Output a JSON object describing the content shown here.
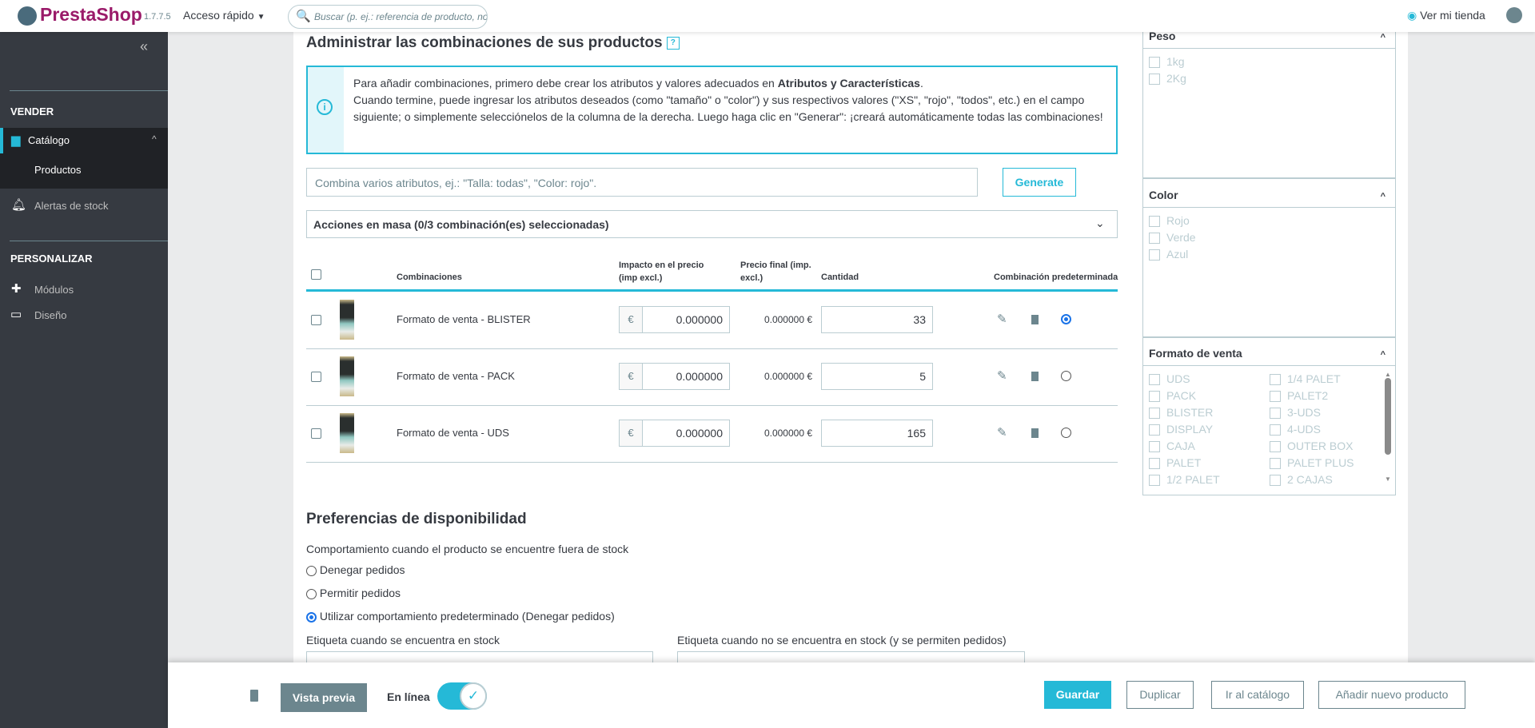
{
  "header": {
    "logo_text": "PrestaShop",
    "version": "1.7.7.5",
    "quick_access": "Acceso rápido",
    "search_placeholder": "Buscar (p. ej.: referencia de producto, no",
    "view_store": "Ver mi tienda"
  },
  "sidebar": {
    "sections": [
      {
        "title": "VENDER"
      },
      {
        "title": "PERSONALIZAR"
      }
    ],
    "items": [
      {
        "label": "Catálogo",
        "icon": "store-icon"
      },
      {
        "label": "Productos"
      },
      {
        "label": "Alertas de stock",
        "icon": "bell-icon"
      },
      {
        "label": "Módulos",
        "icon": "puzzle-icon"
      },
      {
        "label": "Diseño",
        "icon": "monitor-icon"
      }
    ]
  },
  "combinations": {
    "title": "Administrar las combinaciones de sus productos",
    "help": "?",
    "info_line1": "Para añadir combinaciones, primero debe crear los atributos y valores adecuados en ",
    "info_link": "Atributos y Características",
    "info_line1_end": ".",
    "info_rest": "Cuando termine, puede ingresar los atributos deseados (como \"tamaño\" o \"color\") y sus respectivos valores (\"XS\", \"rojo\", \"todos\", etc.) en el campo siguiente; o simplemente selecciónelos de la columna de la derecha. Luego haga clic en \"Generar\": ¡creará automáticamente todas las combinaciones!",
    "input_placeholder": "Combina varios atributos, ej.: \"Talla: todas\", \"Color: rojo\".",
    "generate": "Generate",
    "bulk": "Acciones en masa (0/3 combinación(es) seleccionadas)",
    "columns": [
      "Combinaciones",
      "Impacto en el precio (imp excl.)",
      "Precio final (imp. excl.)",
      "Cantidad",
      "Combinación predeterminada"
    ],
    "currency": "€",
    "rows": [
      {
        "name": "Formato de venta - BLISTER",
        "impact": "0.000000",
        "final": "0.000000 €",
        "qty": "33",
        "default": true
      },
      {
        "name": "Formato de venta - PACK",
        "impact": "0.000000",
        "final": "0.000000 €",
        "qty": "5",
        "default": false
      },
      {
        "name": "Formato de venta - UDS",
        "impact": "0.000000",
        "final": "0.000000 €",
        "qty": "165",
        "default": false
      }
    ]
  },
  "availability": {
    "title": "Preferencias de disponibilidad",
    "label": "Comportamiento cuando el producto se encuentre fuera de stock",
    "options": [
      {
        "label": "Denegar pedidos",
        "selected": false
      },
      {
        "label": "Permitir pedidos",
        "selected": false
      },
      {
        "label": "Utilizar comportamiento predeterminado (Denegar pedidos)",
        "selected": true
      }
    ],
    "in_stock_label": "Etiqueta cuando se encuentra en stock",
    "out_stock_label": "Etiqueta cuando no se encuentra en stock (y se permiten pedidos)"
  },
  "attributes": [
    {
      "title": "Peso",
      "values": [
        "1kg",
        "2Kg"
      ]
    },
    {
      "title": "Color",
      "values": [
        "Rojo",
        "Verde",
        "Azul"
      ]
    },
    {
      "title": "Formato de venta",
      "values": [
        "UDS",
        "PACK",
        "BLISTER",
        "DISPLAY",
        "CAJA",
        "PALET",
        "1/2 PALET"
      ],
      "values2": [
        "1/4 PALET",
        "PALET2",
        "3-UDS",
        "4-UDS",
        "OUTER BOX",
        "PALET PLUS",
        "2 CAJAS"
      ]
    }
  ],
  "footer": {
    "preview": "Vista previa",
    "online": "En línea",
    "online_on": true,
    "save": "Guardar",
    "duplicate": "Duplicar",
    "catalog": "Ir al catálogo",
    "new_product": "Añadir nuevo producto"
  },
  "colors": {
    "accent": "#25b9d7",
    "sidebar": "#363a41"
  }
}
